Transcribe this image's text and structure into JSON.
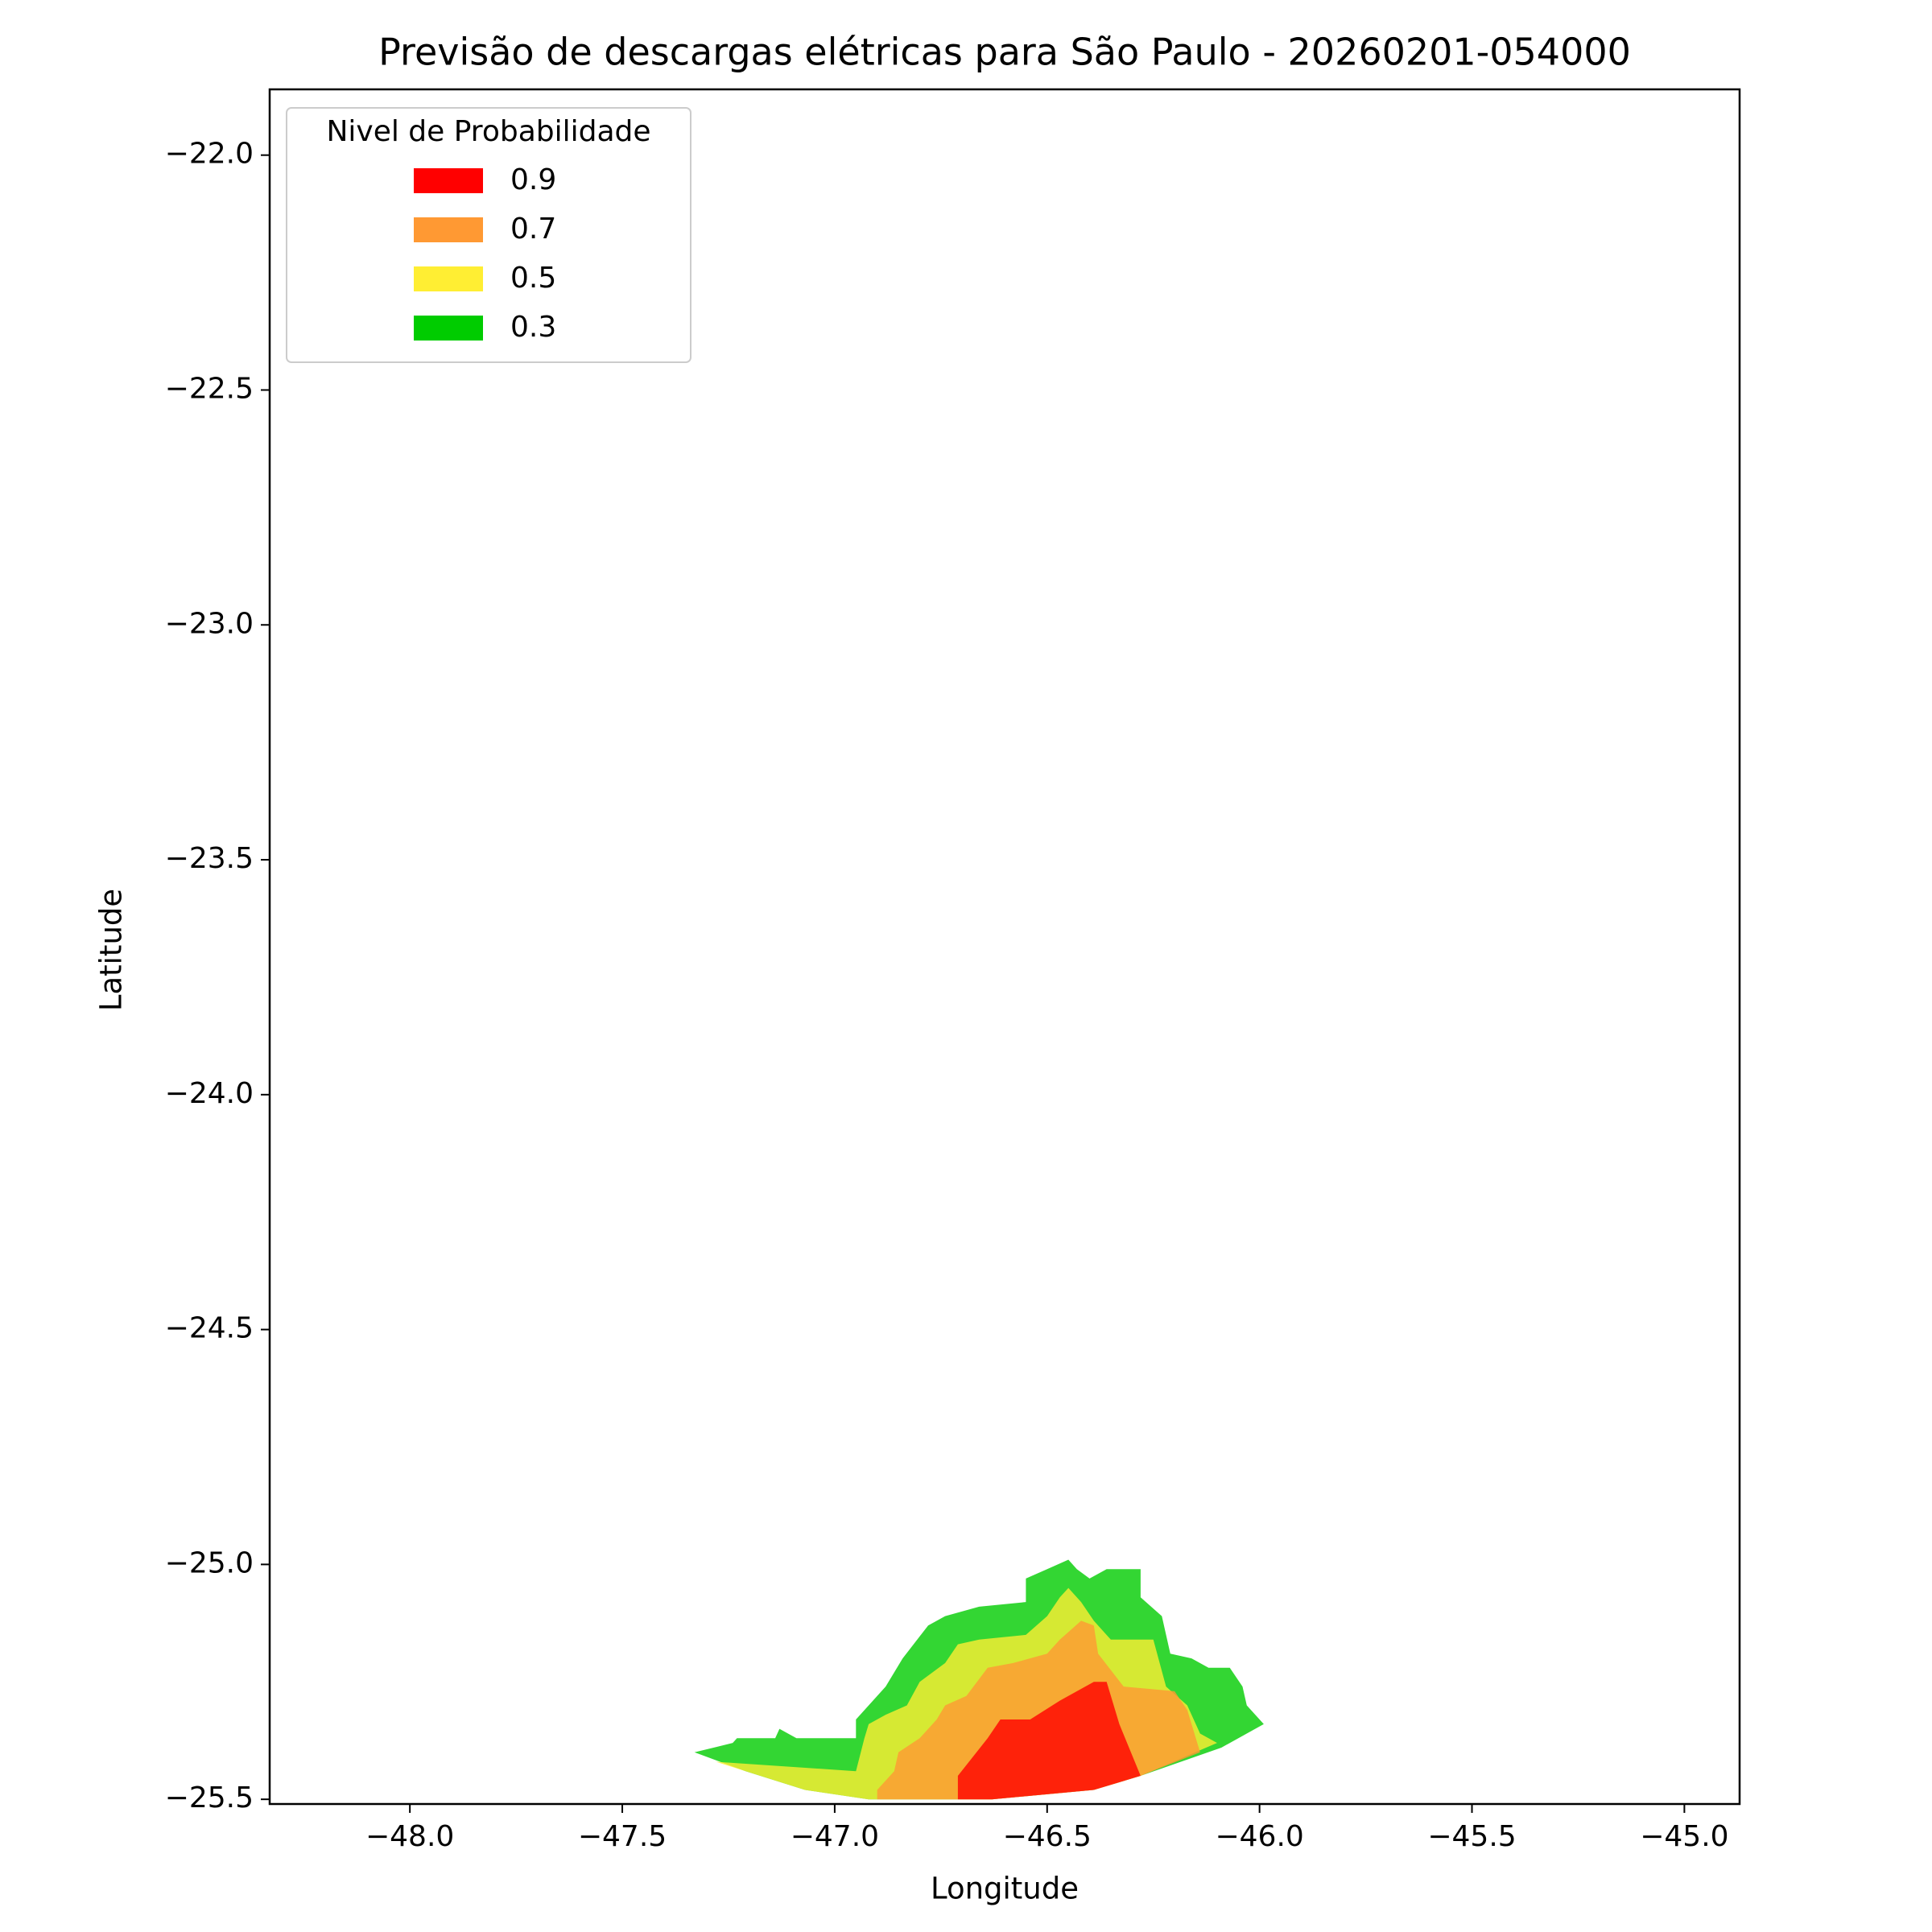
{
  "chart_data": {
    "type": "contour",
    "title": "Previsão de descargas elétricas para São Paulo - 20260201-054000",
    "x_label": "Longitude",
    "y_label": "Latitude",
    "legend_title": "Nivel de Probabilidade",
    "legend_position": "upper left",
    "xlim": [
      -48.33,
      -44.87
    ],
    "ylim": [
      -25.51,
      -21.86
    ],
    "xticks": [
      {
        "value": -48.0,
        "label": "−48.0"
      },
      {
        "value": -47.5,
        "label": "−47.5"
      },
      {
        "value": -47.0,
        "label": "−47.0"
      },
      {
        "value": -46.5,
        "label": "−46.5"
      },
      {
        "value": -46.0,
        "label": "−46.0"
      },
      {
        "value": -45.5,
        "label": "−45.5"
      },
      {
        "value": -45.0,
        "label": "−45.0"
      }
    ],
    "yticks": [
      {
        "value": -22.0,
        "label": "−22.0"
      },
      {
        "value": -22.5,
        "label": "−22.5"
      },
      {
        "value": -23.0,
        "label": "−23.0"
      },
      {
        "value": -23.5,
        "label": "−23.5"
      },
      {
        "value": -24.0,
        "label": "−24.0"
      },
      {
        "value": -24.5,
        "label": "−24.5"
      },
      {
        "value": -25.0,
        "label": "−25.0"
      },
      {
        "value": -25.5,
        "label": "−25.5"
      }
    ],
    "series": [
      {
        "name": "0.9",
        "color": "#ff0000",
        "lon": [
          -46.71,
          -46.71,
          -46.64,
          -46.61,
          -46.54,
          -46.47,
          -46.39,
          -46.36,
          -46.33,
          -46.28,
          -46.39,
          -46.63
        ],
        "lat": [
          -25.5,
          -25.45,
          -25.37,
          -25.33,
          -25.33,
          -25.29,
          -25.25,
          -25.25,
          -25.34,
          -25.45,
          -25.48,
          -25.5
        ]
      },
      {
        "name": "0.7",
        "color": "#ff9933",
        "lon": [
          -46.9,
          -46.9,
          -46.86,
          -46.85,
          -46.8,
          -46.76,
          -46.74,
          -46.69,
          -46.64,
          -46.58,
          -46.5,
          -46.47,
          -46.42,
          -46.39,
          -46.38,
          -46.32,
          -46.2,
          -46.17,
          -46.14,
          -46.28,
          -46.39,
          -46.63
        ],
        "lat": [
          -25.5,
          -25.48,
          -25.44,
          -25.4,
          -25.37,
          -25.33,
          -25.3,
          -25.28,
          -25.22,
          -25.21,
          -25.19,
          -25.16,
          -25.12,
          -25.13,
          -25.19,
          -25.26,
          -25.27,
          -25.31,
          -25.4,
          -25.45,
          -25.48,
          -25.5
        ]
      },
      {
        "name": "0.5",
        "color": "#ffee33",
        "lon": [
          -47.28,
          -46.95,
          -46.93,
          -46.92,
          -46.88,
          -46.83,
          -46.8,
          -46.74,
          -46.71,
          -46.66,
          -46.55,
          -46.5,
          -46.47,
          -46.45,
          -46.42,
          -46.39,
          -46.35,
          -46.25,
          -46.22,
          -46.17,
          -46.14,
          -46.1,
          -46.28,
          -46.39,
          -46.63,
          -46.92,
          -47.07
        ],
        "lat": [
          -25.42,
          -25.44,
          -25.37,
          -25.34,
          -25.32,
          -25.3,
          -25.25,
          -25.21,
          -25.17,
          -25.16,
          -25.15,
          -25.11,
          -25.07,
          -25.05,
          -25.08,
          -25.12,
          -25.16,
          -25.16,
          -25.26,
          -25.3,
          -25.36,
          -25.38,
          -25.45,
          -25.48,
          -25.5,
          -25.5,
          -25.48
        ]
      },
      {
        "name": "0.3",
        "color": "#00cc00",
        "lon": [
          -47.33,
          -47.24,
          -47.23,
          -47.14,
          -47.13,
          -47.09,
          -47.04,
          -46.95,
          -46.95,
          -46.88,
          -46.84,
          -46.78,
          -46.74,
          -46.7,
          -46.66,
          -46.55,
          -46.55,
          -46.5,
          -46.45,
          -46.43,
          -46.4,
          -46.36,
          -46.28,
          -46.28,
          -46.23,
          -46.21,
          -46.16,
          -46.12,
          -46.07,
          -46.04,
          -46.03,
          -45.99,
          -46.09,
          -46.28,
          -46.39,
          -46.63,
          -46.92,
          -47.07,
          -47.21
        ],
        "lat": [
          -25.4,
          -25.38,
          -25.37,
          -25.37,
          -25.35,
          -25.37,
          -25.37,
          -25.37,
          -25.33,
          -25.26,
          -25.2,
          -25.13,
          -25.11,
          -25.1,
          -25.09,
          -25.08,
          -25.03,
          -25.01,
          -24.99,
          -25.01,
          -25.03,
          -25.01,
          -25.01,
          -25.07,
          -25.11,
          -25.19,
          -25.2,
          -25.22,
          -25.22,
          -25.26,
          -25.3,
          -25.34,
          -25.39,
          -25.45,
          -25.48,
          -25.5,
          -25.5,
          -25.48,
          -25.44
        ]
      }
    ]
  }
}
